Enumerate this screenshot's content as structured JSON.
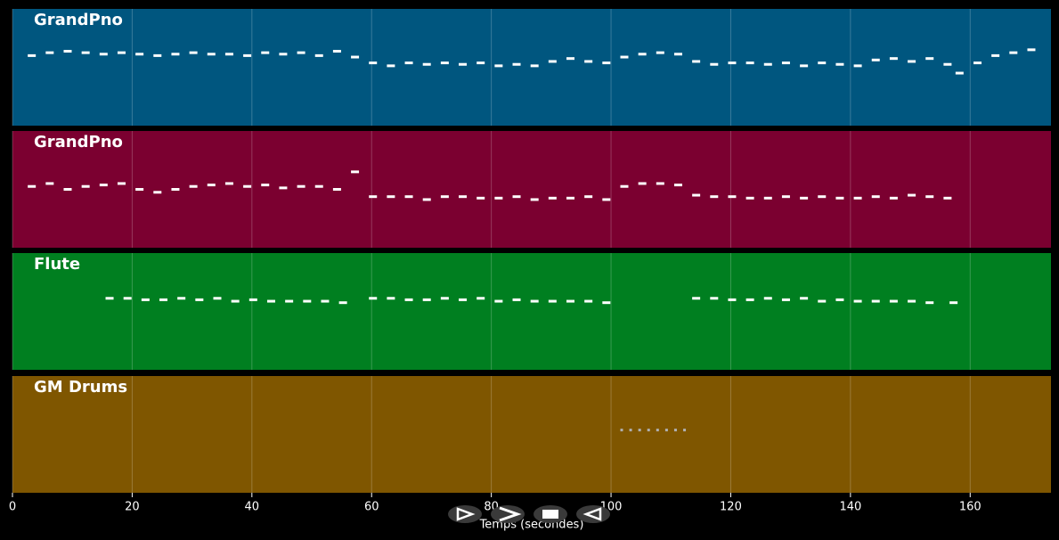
{
  "chart_data": {
    "type": "pianoroll",
    "xlim": [
      0,
      173.5
    ],
    "xticks": [
      0,
      20,
      40,
      60,
      80,
      100,
      120,
      140,
      160
    ],
    "grid": true,
    "xlabel": "Temps (secondes)",
    "tracks": [
      {
        "name": "GrandPno",
        "color": "#00567f",
        "note_color": "#ffffff",
        "ylim": [
          20,
          100
        ],
        "x": [
          3,
          6,
          9,
          12,
          15,
          18,
          21,
          24,
          27,
          30,
          33,
          36,
          39,
          42,
          45,
          48,
          51,
          54,
          57,
          60,
          63,
          66,
          69,
          72,
          75,
          78,
          81,
          84,
          87,
          90,
          93,
          96,
          99,
          102,
          105,
          108,
          111,
          114,
          117,
          120,
          123,
          126,
          129,
          132,
          135,
          138,
          141,
          144,
          147,
          150,
          153,
          156,
          158,
          161,
          164,
          167,
          170
        ],
        "y": [
          68,
          70,
          71,
          70,
          69,
          70,
          69,
          68,
          69,
          70,
          69,
          69,
          68,
          70,
          69,
          70,
          68,
          71,
          67,
          63,
          61,
          63,
          62,
          63,
          62,
          63,
          61,
          62,
          61,
          64,
          66,
          64,
          63,
          67,
          69,
          70,
          69,
          64,
          62,
          63,
          63,
          62,
          63,
          61,
          63,
          62,
          61,
          65,
          66,
          64,
          66,
          62,
          56,
          63,
          68,
          70,
          72
        ]
      },
      {
        "name": "GrandPno",
        "color": "#7b0030",
        "note_color": "#ffffff",
        "ylim": [
          20,
          100
        ],
        "x": [
          3,
          6,
          9,
          12,
          15,
          18,
          21,
          24,
          27,
          30,
          33,
          36,
          39,
          42,
          45,
          48,
          51,
          54,
          57,
          60,
          63,
          66,
          69,
          72,
          75,
          78,
          81,
          84,
          87,
          90,
          93,
          96,
          99,
          102,
          105,
          108,
          111,
          114,
          117,
          120,
          123,
          126,
          129,
          132,
          135,
          138,
          141,
          144,
          147,
          150,
          153,
          156
        ],
        "y": [
          62,
          64,
          60,
          62,
          63,
          64,
          60,
          58,
          60,
          62,
          63,
          64,
          62,
          63,
          61,
          62,
          62,
          60,
          72,
          55,
          55,
          55,
          53,
          55,
          55,
          54,
          54,
          55,
          53,
          54,
          54,
          55,
          53,
          62,
          64,
          64,
          63,
          56,
          55,
          55,
          54,
          54,
          55,
          54,
          55,
          54,
          54,
          55,
          54,
          56,
          55,
          54
        ]
      },
      {
        "name": "Flute",
        "color": "#007f20",
        "note_color": "#ffffff",
        "ylim": [
          20,
          100
        ],
        "x": [
          16,
          19,
          22,
          25,
          28,
          31,
          34,
          37,
          40,
          43,
          46,
          49,
          52,
          55,
          60,
          63,
          66,
          69,
          72,
          75,
          78,
          81,
          84,
          87,
          90,
          93,
          96,
          99,
          114,
          117,
          120,
          123,
          126,
          129,
          132,
          135,
          138,
          141,
          144,
          147,
          150,
          153,
          157
        ],
        "y": [
          69,
          69,
          68,
          68,
          69,
          68,
          69,
          67,
          68,
          67,
          67,
          67,
          67,
          66,
          69,
          69,
          68,
          68,
          69,
          68,
          69,
          67,
          68,
          67,
          67,
          67,
          67,
          66,
          69,
          69,
          68,
          68,
          69,
          68,
          69,
          67,
          68,
          67,
          67,
          67,
          67,
          66,
          66
        ]
      },
      {
        "name": "GM Drums",
        "color": "#7f5600",
        "note_color": "#b0b0b0",
        "ylim": [
          20,
          100
        ],
        "x": [
          102,
          103.5,
          105,
          106.5,
          108,
          109.5,
          111,
          112.5
        ],
        "y": [
          63,
          63,
          63,
          63,
          63,
          63,
          63,
          63
        ]
      }
    ]
  }
}
